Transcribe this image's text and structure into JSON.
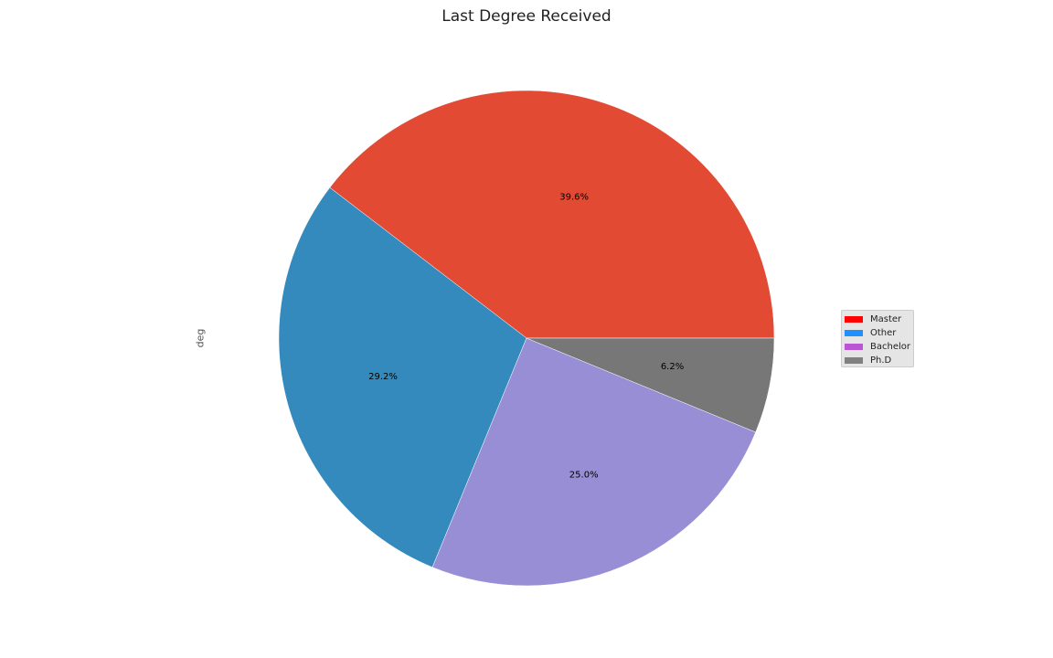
{
  "chart_data": {
    "type": "pie",
    "title": "Last Degree Received",
    "ylabel": "deg",
    "slices": [
      {
        "label": "Master",
        "value": 39.6,
        "pct_label": "39.6%",
        "color": "#E24A33"
      },
      {
        "label": "Other",
        "value": 29.2,
        "pct_label": "29.2%",
        "color": "#348ABD"
      },
      {
        "label": "Bachelor",
        "value": 25.0,
        "pct_label": "25.0%",
        "color": "#988ED5"
      },
      {
        "label": "Ph.D",
        "value": 6.2,
        "pct_label": "6.2%",
        "color": "#777777"
      }
    ],
    "legend": {
      "placement": "center-right",
      "entries": [
        {
          "label": "Master",
          "color": "#FF0000"
        },
        {
          "label": "Other",
          "color": "#1E90FF"
        },
        {
          "label": "Bachelor",
          "color": "#BA55D3"
        },
        {
          "label": "Ph.D",
          "color": "#808080"
        }
      ]
    }
  }
}
